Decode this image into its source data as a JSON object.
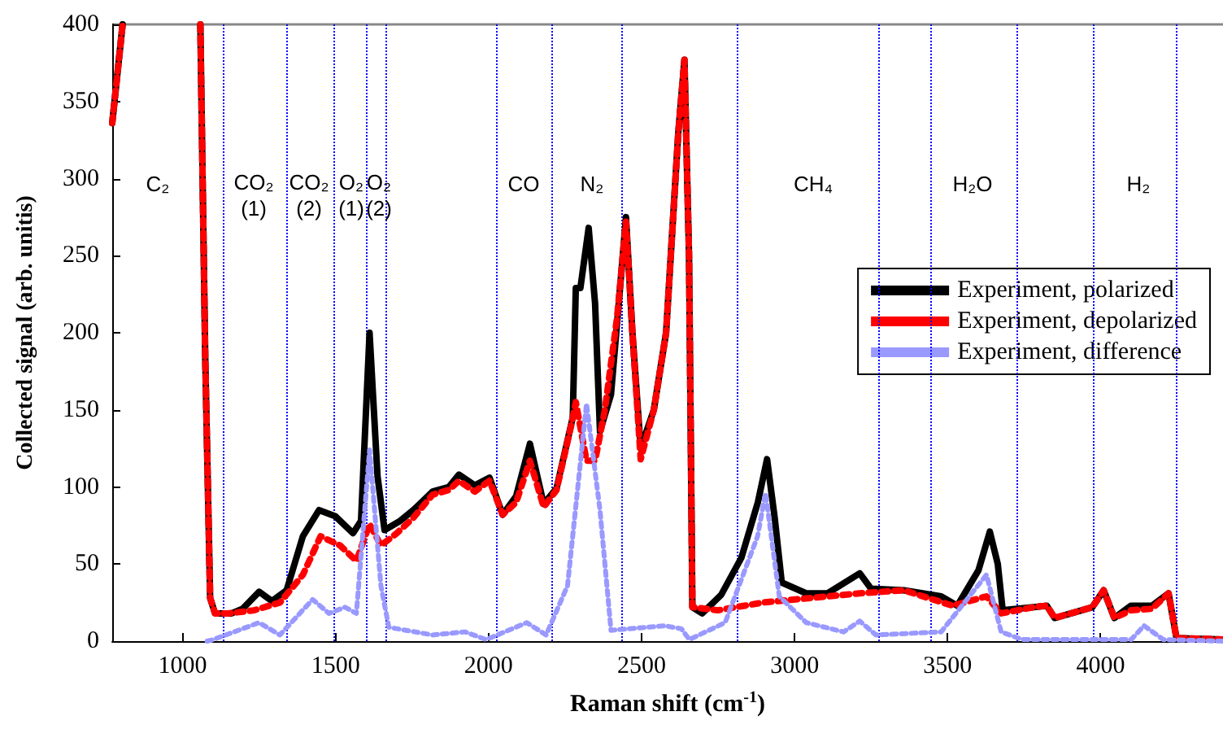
{
  "chart_data": {
    "type": "line",
    "xlabel": "Raman shift (cm$^{-1}$)",
    "ylabel": "Collected signal (arb. unitis)",
    "xlim": [
      770,
      4400
    ],
    "xticks": [
      1000,
      1500,
      2000,
      2500,
      3000,
      3500,
      4000
    ],
    "ylim": [
      0,
      400
    ],
    "yticks": [
      0,
      50,
      100,
      150,
      200,
      250,
      300,
      350,
      400
    ],
    "grid": false,
    "legend": "right",
    "marker": "none",
    "series": [
      {
        "name": "Experiment, polarized",
        "color": "#000000",
        "line_style": "solid",
        "x": [
          770,
          804,
          930,
          1058,
          1074,
          1090,
          1106,
          1160,
          1196,
          1250,
          1292,
          1340,
          1393,
          1446,
          1499,
          1557,
          1583,
          1611,
          1637,
          1660,
          1711,
          1754,
          1817,
          1870,
          1903,
          1955,
          2003,
          2046,
          2090,
          2135,
          2180,
          2222,
          2275,
          2285,
          2300,
          2327,
          2348,
          2364,
          2400,
          2430,
          2449,
          2470,
          2497,
          2540,
          2580,
          2620,
          2640,
          2655,
          2666,
          2698,
          2760,
          2826,
          2880,
          2910,
          2935,
          2958,
          3038,
          3107,
          3213,
          3250,
          3357,
          3479,
          3532,
          3601,
          3638,
          3664,
          3680,
          3781,
          3824,
          3850,
          3973,
          4010,
          4045,
          4099,
          4168,
          4222,
          4248,
          4400
        ],
        "values": [
          336,
          400,
          null,
          400,
          184,
          28,
          18,
          18,
          21,
          32,
          26,
          33,
          68,
          85,
          81,
          70,
          78,
          200,
          107,
          72,
          78,
          85,
          97,
          100,
          108,
          101,
          106,
          82,
          94,
          128,
          89,
          99,
          145,
          229,
          229,
          268,
          219,
          136,
          160,
          230,
          275,
          200,
          125,
          150,
          200,
          330,
          377,
          250,
          22,
          18,
          30,
          54,
          90,
          118,
          80,
          38,
          31,
          31,
          44,
          34,
          33,
          29,
          23,
          46,
          71,
          50,
          20,
          22,
          23,
          15,
          22,
          33,
          15,
          23,
          23,
          31,
          2,
          1
        ]
      },
      {
        "name": "Experiment, depolarized",
        "color": "#ff0000",
        "line_style": "dotted",
        "x": [
          770,
          804,
          930,
          1058,
          1074,
          1090,
          1106,
          1150,
          1233,
          1318,
          1393,
          1451,
          1515,
          1568,
          1611,
          1648,
          1700,
          1754,
          1817,
          1870,
          1903,
          1955,
          2003,
          2046,
          2090,
          2135,
          2180,
          2222,
          2270,
          2285,
          2320,
          2348,
          2380,
          2420,
          2449,
          2470,
          2497,
          2540,
          2580,
          2620,
          2640,
          2655,
          2666,
          2750,
          2895,
          3213,
          3357,
          3516,
          3627,
          3675,
          3781,
          3824,
          3850,
          3973,
          4010,
          4045,
          4099,
          4168,
          4222,
          4248,
          4400
        ],
        "values": [
          336,
          400,
          null,
          400,
          184,
          28,
          18,
          18,
          20,
          25,
          43,
          68,
          62,
          52,
          76,
          62,
          70,
          80,
          95,
          98,
          104,
          97,
          104,
          82,
          90,
          117,
          87,
          98,
          140,
          155,
          117,
          117,
          150,
          210,
          272,
          200,
          118,
          150,
          200,
          330,
          377,
          250,
          22,
          20,
          25,
          31,
          33,
          23,
          29,
          18,
          22,
          23,
          15,
          22,
          33,
          15,
          20,
          21,
          31,
          2,
          1
        ]
      },
      {
        "name": "Experiment, difference",
        "color": "#9999ff",
        "line_style": "dotted",
        "x": [
          1080,
          1100,
          1250,
          1318,
          1425,
          1478,
          1531,
          1568,
          1611,
          1648,
          1674,
          1817,
          1923,
          1992,
          2125,
          2188,
          2258,
          2320,
          2364,
          2400,
          2576,
          2630,
          2656,
          2773,
          2879,
          2905,
          2950,
          3038,
          3160,
          3213,
          3266,
          3479,
          3627,
          3675,
          3744,
          4100,
          4142,
          4205,
          4400
        ],
        "values": [
          0,
          1,
          12,
          4,
          27,
          18,
          22,
          18,
          124,
          36,
          9,
          4,
          6,
          1,
          12,
          4,
          36,
          154,
          85,
          7,
          10,
          8,
          1,
          12,
          68,
          96,
          29,
          12,
          6,
          13,
          4,
          6,
          43,
          6,
          1,
          1,
          10,
          1,
          0
        ]
      }
    ],
    "ref_lines": [
      {
        "axis": "x",
        "value": 1133,
        "color": "#0000ff",
        "line_style": "dotted"
      },
      {
        "axis": "x",
        "value": 1340,
        "color": "#0000ff",
        "line_style": "dotted"
      },
      {
        "axis": "x",
        "value": 1494,
        "color": "#0000ff",
        "line_style": "dotted"
      },
      {
        "axis": "x",
        "value": 1600,
        "color": "#0000ff",
        "line_style": "dotted"
      },
      {
        "axis": "x",
        "value": 1663,
        "color": "#0000ff",
        "line_style": "dotted"
      },
      {
        "axis": "x",
        "value": 2024,
        "color": "#0000ff",
        "line_style": "dotted"
      },
      {
        "axis": "x",
        "value": 2205,
        "color": "#0000ff",
        "line_style": "dotted"
      },
      {
        "axis": "x",
        "value": 2433,
        "color": "#0000ff",
        "line_style": "dotted"
      },
      {
        "axis": "x",
        "value": 2810,
        "color": "#0000ff",
        "line_style": "dotted"
      },
      {
        "axis": "x",
        "value": 3277,
        "color": "#0000ff",
        "line_style": "dotted"
      },
      {
        "axis": "x",
        "value": 3447,
        "color": "#0000ff",
        "line_style": "dotted"
      },
      {
        "axis": "x",
        "value": 3728,
        "color": "#0000ff",
        "line_style": "dotted"
      },
      {
        "axis": "x",
        "value": 3978,
        "color": "#0000ff",
        "line_style": "dotted"
      },
      {
        "axis": "x",
        "value": 4248,
        "color": "#0000ff",
        "line_style": "dotted"
      }
    ],
    "annotations": [
      "C₂",
      "CO₂\n(1)",
      "CO₂\n(2)",
      "O₂\n(1)",
      "O₂\n(2)",
      "CO",
      "N₂",
      "CH₄",
      "H₂O",
      "H₂"
    ]
  }
}
